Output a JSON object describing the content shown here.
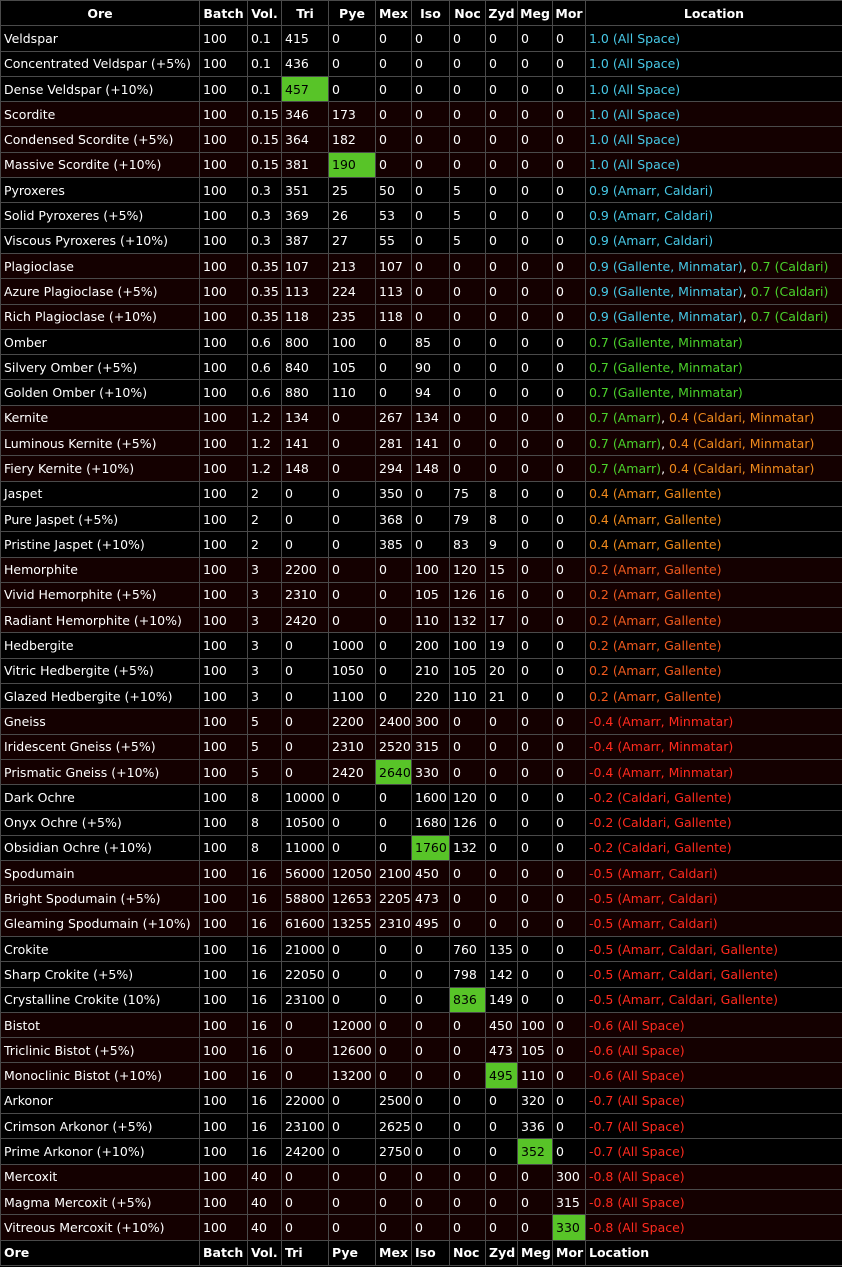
{
  "columns": [
    "Ore",
    "Batch",
    "Vol.",
    "Tri",
    "Pye",
    "Mex",
    "Iso",
    "Noc",
    "Zyd",
    "Meg",
    "Mor",
    "Location"
  ],
  "colors": {
    "cyan": "#47c8e6",
    "green": "#4bd12b",
    "orange": "#f08a1c",
    "orange_red": "#f05a1e",
    "red": "#ff2a1e",
    "highlight": "#58c428"
  },
  "rows": [
    {
      "g": 0,
      "ore": "Veldspar",
      "batch": "100",
      "vol": "0.1",
      "vals": [
        "415",
        "0",
        "0",
        "0",
        "0",
        "0",
        "0",
        "0"
      ],
      "hl": -1,
      "loc": [
        {
          "t": "1.0 (All Space)",
          "c": "c-cyan"
        }
      ]
    },
    {
      "g": 0,
      "ore": "Concentrated Veldspar (+5%)",
      "batch": "100",
      "vol": "0.1",
      "vals": [
        "436",
        "0",
        "0",
        "0",
        "0",
        "0",
        "0",
        "0"
      ],
      "hl": -1,
      "loc": [
        {
          "t": "1.0 (All Space)",
          "c": "c-cyan"
        }
      ]
    },
    {
      "g": 0,
      "ore": "Dense Veldspar (+10%)",
      "batch": "100",
      "vol": "0.1",
      "vals": [
        "457",
        "0",
        "0",
        "0",
        "0",
        "0",
        "0",
        "0"
      ],
      "hl": 0,
      "loc": [
        {
          "t": "1.0 (All Space)",
          "c": "c-cyan"
        }
      ]
    },
    {
      "g": 1,
      "ore": "Scordite",
      "batch": "100",
      "vol": "0.15",
      "vals": [
        "346",
        "173",
        "0",
        "0",
        "0",
        "0",
        "0",
        "0"
      ],
      "hl": -1,
      "loc": [
        {
          "t": "1.0 (All Space)",
          "c": "c-cyan"
        }
      ]
    },
    {
      "g": 1,
      "ore": "Condensed Scordite (+5%)",
      "batch": "100",
      "vol": "0.15",
      "vals": [
        "364",
        "182",
        "0",
        "0",
        "0",
        "0",
        "0",
        "0"
      ],
      "hl": -1,
      "loc": [
        {
          "t": "1.0 (All Space)",
          "c": "c-cyan"
        }
      ]
    },
    {
      "g": 1,
      "ore": "Massive Scordite (+10%)",
      "batch": "100",
      "vol": "0.15",
      "vals": [
        "381",
        "190",
        "0",
        "0",
        "0",
        "0",
        "0",
        "0"
      ],
      "hl": 1,
      "loc": [
        {
          "t": "1.0 (All Space)",
          "c": "c-cyan"
        }
      ]
    },
    {
      "g": 0,
      "ore": "Pyroxeres",
      "batch": "100",
      "vol": "0.3",
      "vals": [
        "351",
        "25",
        "50",
        "0",
        "5",
        "0",
        "0",
        "0"
      ],
      "hl": -1,
      "loc": [
        {
          "t": "0.9 (Amarr, Caldari)",
          "c": "c-cyan"
        }
      ]
    },
    {
      "g": 0,
      "ore": "Solid Pyroxeres (+5%)",
      "batch": "100",
      "vol": "0.3",
      "vals": [
        "369",
        "26",
        "53",
        "0",
        "5",
        "0",
        "0",
        "0"
      ],
      "hl": -1,
      "loc": [
        {
          "t": "0.9 (Amarr, Caldari)",
          "c": "c-cyan"
        }
      ]
    },
    {
      "g": 0,
      "ore": "Viscous Pyroxeres (+10%)",
      "batch": "100",
      "vol": "0.3",
      "vals": [
        "387",
        "27",
        "55",
        "0",
        "5",
        "0",
        "0",
        "0"
      ],
      "hl": -1,
      "loc": [
        {
          "t": "0.9 (Amarr, Caldari)",
          "c": "c-cyan"
        }
      ]
    },
    {
      "g": 1,
      "ore": "Plagioclase",
      "batch": "100",
      "vol": "0.35",
      "vals": [
        "107",
        "213",
        "107",
        "0",
        "0",
        "0",
        "0",
        "0"
      ],
      "hl": -1,
      "loc": [
        {
          "t": "0.9 (Gallente, Minmatar)",
          "c": "c-cyan"
        },
        {
          "t": ", ",
          "c": ""
        },
        {
          "t": "0.7 (Caldari)",
          "c": "c-green"
        }
      ]
    },
    {
      "g": 1,
      "ore": "Azure Plagioclase (+5%)",
      "batch": "100",
      "vol": "0.35",
      "vals": [
        "113",
        "224",
        "113",
        "0",
        "0",
        "0",
        "0",
        "0"
      ],
      "hl": -1,
      "loc": [
        {
          "t": "0.9 (Gallente, Minmatar)",
          "c": "c-cyan"
        },
        {
          "t": ", ",
          "c": ""
        },
        {
          "t": "0.7 (Caldari)",
          "c": "c-green"
        }
      ]
    },
    {
      "g": 1,
      "ore": "Rich Plagioclase (+10%)",
      "batch": "100",
      "vol": "0.35",
      "vals": [
        "118",
        "235",
        "118",
        "0",
        "0",
        "0",
        "0",
        "0"
      ],
      "hl": -1,
      "loc": [
        {
          "t": "0.9 (Gallente, Minmatar)",
          "c": "c-cyan"
        },
        {
          "t": ", ",
          "c": ""
        },
        {
          "t": "0.7 (Caldari)",
          "c": "c-green"
        }
      ]
    },
    {
      "g": 0,
      "ore": "Omber",
      "batch": "100",
      "vol": "0.6",
      "vals": [
        "800",
        "100",
        "0",
        "85",
        "0",
        "0",
        "0",
        "0"
      ],
      "hl": -1,
      "loc": [
        {
          "t": "0.7 (Gallente, Minmatar)",
          "c": "c-green"
        }
      ]
    },
    {
      "g": 0,
      "ore": "Silvery Omber (+5%)",
      "batch": "100",
      "vol": "0.6",
      "vals": [
        "840",
        "105",
        "0",
        "90",
        "0",
        "0",
        "0",
        "0"
      ],
      "hl": -1,
      "loc": [
        {
          "t": "0.7 (Gallente, Minmatar)",
          "c": "c-green"
        }
      ]
    },
    {
      "g": 0,
      "ore": "Golden Omber (+10%)",
      "batch": "100",
      "vol": "0.6",
      "vals": [
        "880",
        "110",
        "0",
        "94",
        "0",
        "0",
        "0",
        "0"
      ],
      "hl": -1,
      "loc": [
        {
          "t": "0.7 (Gallente, Minmatar)",
          "c": "c-green"
        }
      ]
    },
    {
      "g": 1,
      "ore": "Kernite",
      "batch": "100",
      "vol": "1.2",
      "vals": [
        "134",
        "0",
        "267",
        "134",
        "0",
        "0",
        "0",
        "0"
      ],
      "hl": -1,
      "loc": [
        {
          "t": "0.7 (Amarr)",
          "c": "c-green"
        },
        {
          "t": ", ",
          "c": ""
        },
        {
          "t": "0.4 (Caldari, Minmatar)",
          "c": "c-orange"
        }
      ]
    },
    {
      "g": 1,
      "ore": "Luminous Kernite (+5%)",
      "batch": "100",
      "vol": "1.2",
      "vals": [
        "141",
        "0",
        "281",
        "141",
        "0",
        "0",
        "0",
        "0"
      ],
      "hl": -1,
      "loc": [
        {
          "t": "0.7 (Amarr)",
          "c": "c-green"
        },
        {
          "t": ", ",
          "c": ""
        },
        {
          "t": "0.4 (Caldari, Minmatar)",
          "c": "c-orange"
        }
      ]
    },
    {
      "g": 1,
      "ore": "Fiery Kernite (+10%)",
      "batch": "100",
      "vol": "1.2",
      "vals": [
        "148",
        "0",
        "294",
        "148",
        "0",
        "0",
        "0",
        "0"
      ],
      "hl": -1,
      "loc": [
        {
          "t": "0.7 (Amarr)",
          "c": "c-green"
        },
        {
          "t": ", ",
          "c": ""
        },
        {
          "t": "0.4 (Caldari, Minmatar)",
          "c": "c-orange"
        }
      ]
    },
    {
      "g": 0,
      "ore": "Jaspet",
      "batch": "100",
      "vol": "2",
      "vals": [
        "0",
        "0",
        "350",
        "0",
        "75",
        "8",
        "0",
        "0"
      ],
      "hl": -1,
      "loc": [
        {
          "t": "0.4 (Amarr, Gallente)",
          "c": "c-orange"
        }
      ]
    },
    {
      "g": 0,
      "ore": "Pure Jaspet (+5%)",
      "batch": "100",
      "vol": "2",
      "vals": [
        "0",
        "0",
        "368",
        "0",
        "79",
        "8",
        "0",
        "0"
      ],
      "hl": -1,
      "loc": [
        {
          "t": "0.4 (Amarr, Gallente)",
          "c": "c-orange"
        }
      ]
    },
    {
      "g": 0,
      "ore": "Pristine Jaspet (+10%)",
      "batch": "100",
      "vol": "2",
      "vals": [
        "0",
        "0",
        "385",
        "0",
        "83",
        "9",
        "0",
        "0"
      ],
      "hl": -1,
      "loc": [
        {
          "t": "0.4 (Amarr, Gallente)",
          "c": "c-orange"
        }
      ]
    },
    {
      "g": 1,
      "ore": "Hemorphite",
      "batch": "100",
      "vol": "3",
      "vals": [
        "2200",
        "0",
        "0",
        "100",
        "120",
        "15",
        "0",
        "0"
      ],
      "hl": -1,
      "loc": [
        {
          "t": "0.2 (Amarr, Gallente)",
          "c": "c-orred"
        }
      ]
    },
    {
      "g": 1,
      "ore": "Vivid Hemorphite (+5%)",
      "batch": "100",
      "vol": "3",
      "vals": [
        "2310",
        "0",
        "0",
        "105",
        "126",
        "16",
        "0",
        "0"
      ],
      "hl": -1,
      "loc": [
        {
          "t": "0.2 (Amarr, Gallente)",
          "c": "c-orred"
        }
      ]
    },
    {
      "g": 1,
      "ore": "Radiant Hemorphite (+10%)",
      "batch": "100",
      "vol": "3",
      "vals": [
        "2420",
        "0",
        "0",
        "110",
        "132",
        "17",
        "0",
        "0"
      ],
      "hl": -1,
      "loc": [
        {
          "t": "0.2 (Amarr, Gallente)",
          "c": "c-orred"
        }
      ]
    },
    {
      "g": 0,
      "ore": "Hedbergite",
      "batch": "100",
      "vol": "3",
      "vals": [
        "0",
        "1000",
        "0",
        "200",
        "100",
        "19",
        "0",
        "0"
      ],
      "hl": -1,
      "loc": [
        {
          "t": "0.2 (Amarr, Gallente)",
          "c": "c-orred"
        }
      ]
    },
    {
      "g": 0,
      "ore": "Vitric Hedbergite (+5%)",
      "batch": "100",
      "vol": "3",
      "vals": [
        "0",
        "1050",
        "0",
        "210",
        "105",
        "20",
        "0",
        "0"
      ],
      "hl": -1,
      "loc": [
        {
          "t": "0.2 (Amarr, Gallente)",
          "c": "c-orred"
        }
      ]
    },
    {
      "g": 0,
      "ore": "Glazed Hedbergite (+10%)",
      "batch": "100",
      "vol": "3",
      "vals": [
        "0",
        "1100",
        "0",
        "220",
        "110",
        "21",
        "0",
        "0"
      ],
      "hl": -1,
      "loc": [
        {
          "t": "0.2 (Amarr, Gallente)",
          "c": "c-orred"
        }
      ]
    },
    {
      "g": 1,
      "ore": "Gneiss",
      "batch": "100",
      "vol": "5",
      "vals": [
        "0",
        "2200",
        "2400",
        "300",
        "0",
        "0",
        "0",
        "0"
      ],
      "hl": -1,
      "loc": [
        {
          "t": "-0.4 (Amarr, Minmatar)",
          "c": "c-red"
        }
      ]
    },
    {
      "g": 1,
      "ore": "Iridescent Gneiss (+5%)",
      "batch": "100",
      "vol": "5",
      "vals": [
        "0",
        "2310",
        "2520",
        "315",
        "0",
        "0",
        "0",
        "0"
      ],
      "hl": -1,
      "loc": [
        {
          "t": "-0.4 (Amarr, Minmatar)",
          "c": "c-red"
        }
      ]
    },
    {
      "g": 1,
      "ore": "Prismatic Gneiss (+10%)",
      "batch": "100",
      "vol": "5",
      "vals": [
        "0",
        "2420",
        "2640",
        "330",
        "0",
        "0",
        "0",
        "0"
      ],
      "hl": 2,
      "loc": [
        {
          "t": "-0.4 (Amarr, Minmatar)",
          "c": "c-red"
        }
      ]
    },
    {
      "g": 0,
      "ore": "Dark Ochre",
      "batch": "100",
      "vol": "8",
      "vals": [
        "10000",
        "0",
        "0",
        "1600",
        "120",
        "0",
        "0",
        "0"
      ],
      "hl": -1,
      "loc": [
        {
          "t": "-0.2 (Caldari, Gallente)",
          "c": "c-red"
        }
      ]
    },
    {
      "g": 0,
      "ore": "Onyx Ochre (+5%)",
      "batch": "100",
      "vol": "8",
      "vals": [
        "10500",
        "0",
        "0",
        "1680",
        "126",
        "0",
        "0",
        "0"
      ],
      "hl": -1,
      "loc": [
        {
          "t": "-0.2 (Caldari, Gallente)",
          "c": "c-red"
        }
      ]
    },
    {
      "g": 0,
      "ore": "Obsidian Ochre (+10%)",
      "batch": "100",
      "vol": "8",
      "vals": [
        "11000",
        "0",
        "0",
        "1760",
        "132",
        "0",
        "0",
        "0"
      ],
      "hl": 3,
      "loc": [
        {
          "t": "-0.2 (Caldari, Gallente)",
          "c": "c-red"
        }
      ]
    },
    {
      "g": 1,
      "ore": "Spodumain",
      "batch": "100",
      "vol": "16",
      "vals": [
        "56000",
        "12050",
        "2100",
        "450",
        "0",
        "0",
        "0",
        "0"
      ],
      "hl": -1,
      "loc": [
        {
          "t": "-0.5 (Amarr, Caldari)",
          "c": "c-red"
        }
      ]
    },
    {
      "g": 1,
      "ore": "Bright Spodumain (+5%)",
      "batch": "100",
      "vol": "16",
      "vals": [
        "58800",
        "12653",
        "2205",
        "473",
        "0",
        "0",
        "0",
        "0"
      ],
      "hl": -1,
      "loc": [
        {
          "t": "-0.5 (Amarr, Caldari)",
          "c": "c-red"
        }
      ]
    },
    {
      "g": 1,
      "ore": "Gleaming Spodumain (+10%)",
      "batch": "100",
      "vol": "16",
      "vals": [
        "61600",
        "13255",
        "2310",
        "495",
        "0",
        "0",
        "0",
        "0"
      ],
      "hl": -1,
      "loc": [
        {
          "t": "-0.5 (Amarr, Caldari)",
          "c": "c-red"
        }
      ]
    },
    {
      "g": 0,
      "ore": "Crokite",
      "batch": "100",
      "vol": "16",
      "vals": [
        "21000",
        "0",
        "0",
        "0",
        "760",
        "135",
        "0",
        "0"
      ],
      "hl": -1,
      "loc": [
        {
          "t": "-0.5 (Amarr, Caldari, Gallente)",
          "c": "c-red"
        }
      ]
    },
    {
      "g": 0,
      "ore": "Sharp Crokite (+5%)",
      "batch": "100",
      "vol": "16",
      "vals": [
        "22050",
        "0",
        "0",
        "0",
        "798",
        "142",
        "0",
        "0"
      ],
      "hl": -1,
      "loc": [
        {
          "t": "-0.5 (Amarr, Caldari, Gallente)",
          "c": "c-red"
        }
      ]
    },
    {
      "g": 0,
      "ore": "Crystalline Crokite (10%)",
      "batch": "100",
      "vol": "16",
      "vals": [
        "23100",
        "0",
        "0",
        "0",
        "836",
        "149",
        "0",
        "0"
      ],
      "hl": 4,
      "loc": [
        {
          "t": "-0.5 (Amarr, Caldari, Gallente)",
          "c": "c-red"
        }
      ]
    },
    {
      "g": 1,
      "ore": "Bistot",
      "batch": "100",
      "vol": "16",
      "vals": [
        "0",
        "12000",
        "0",
        "0",
        "0",
        "450",
        "100",
        "0"
      ],
      "hl": -1,
      "loc": [
        {
          "t": "-0.6 (All Space)",
          "c": "c-red"
        }
      ]
    },
    {
      "g": 1,
      "ore": "Triclinic Bistot (+5%)",
      "batch": "100",
      "vol": "16",
      "vals": [
        "0",
        "12600",
        "0",
        "0",
        "0",
        "473",
        "105",
        "0"
      ],
      "hl": -1,
      "loc": [
        {
          "t": "-0.6 (All Space)",
          "c": "c-red"
        }
      ]
    },
    {
      "g": 1,
      "ore": "Monoclinic Bistot (+10%)",
      "batch": "100",
      "vol": "16",
      "vals": [
        "0",
        "13200",
        "0",
        "0",
        "0",
        "495",
        "110",
        "0"
      ],
      "hl": 5,
      "loc": [
        {
          "t": "-0.6 (All Space)",
          "c": "c-red"
        }
      ]
    },
    {
      "g": 0,
      "ore": "Arkonor",
      "batch": "100",
      "vol": "16",
      "vals": [
        "22000",
        "0",
        "2500",
        "0",
        "0",
        "0",
        "320",
        "0"
      ],
      "hl": -1,
      "loc": [
        {
          "t": "-0.7 (All Space)",
          "c": "c-red"
        }
      ]
    },
    {
      "g": 0,
      "ore": "Crimson Arkonor (+5%)",
      "batch": "100",
      "vol": "16",
      "vals": [
        "23100",
        "0",
        "2625",
        "0",
        "0",
        "0",
        "336",
        "0"
      ],
      "hl": -1,
      "loc": [
        {
          "t": "-0.7 (All Space)",
          "c": "c-red"
        }
      ]
    },
    {
      "g": 0,
      "ore": "Prime Arkonor (+10%)",
      "batch": "100",
      "vol": "16",
      "vals": [
        "24200",
        "0",
        "2750",
        "0",
        "0",
        "0",
        "352",
        "0"
      ],
      "hl": 6,
      "loc": [
        {
          "t": "-0.7 (All Space)",
          "c": "c-red"
        }
      ]
    },
    {
      "g": 1,
      "ore": "Mercoxit",
      "batch": "100",
      "vol": "40",
      "vals": [
        "0",
        "0",
        "0",
        "0",
        "0",
        "0",
        "0",
        "300"
      ],
      "hl": -1,
      "loc": [
        {
          "t": "-0.8 (All Space)",
          "c": "c-red"
        }
      ]
    },
    {
      "g": 1,
      "ore": "Magma Mercoxit (+5%)",
      "batch": "100",
      "vol": "40",
      "vals": [
        "0",
        "0",
        "0",
        "0",
        "0",
        "0",
        "0",
        "315"
      ],
      "hl": -1,
      "loc": [
        {
          "t": "-0.8 (All Space)",
          "c": "c-red"
        }
      ]
    },
    {
      "g": 1,
      "ore": "Vitreous Mercoxit (+10%)",
      "batch": "100",
      "vol": "40",
      "vals": [
        "0",
        "0",
        "0",
        "0",
        "0",
        "0",
        "0",
        "330"
      ],
      "hl": 7,
      "loc": [
        {
          "t": "-0.8 (All Space)",
          "c": "c-red"
        }
      ]
    }
  ]
}
